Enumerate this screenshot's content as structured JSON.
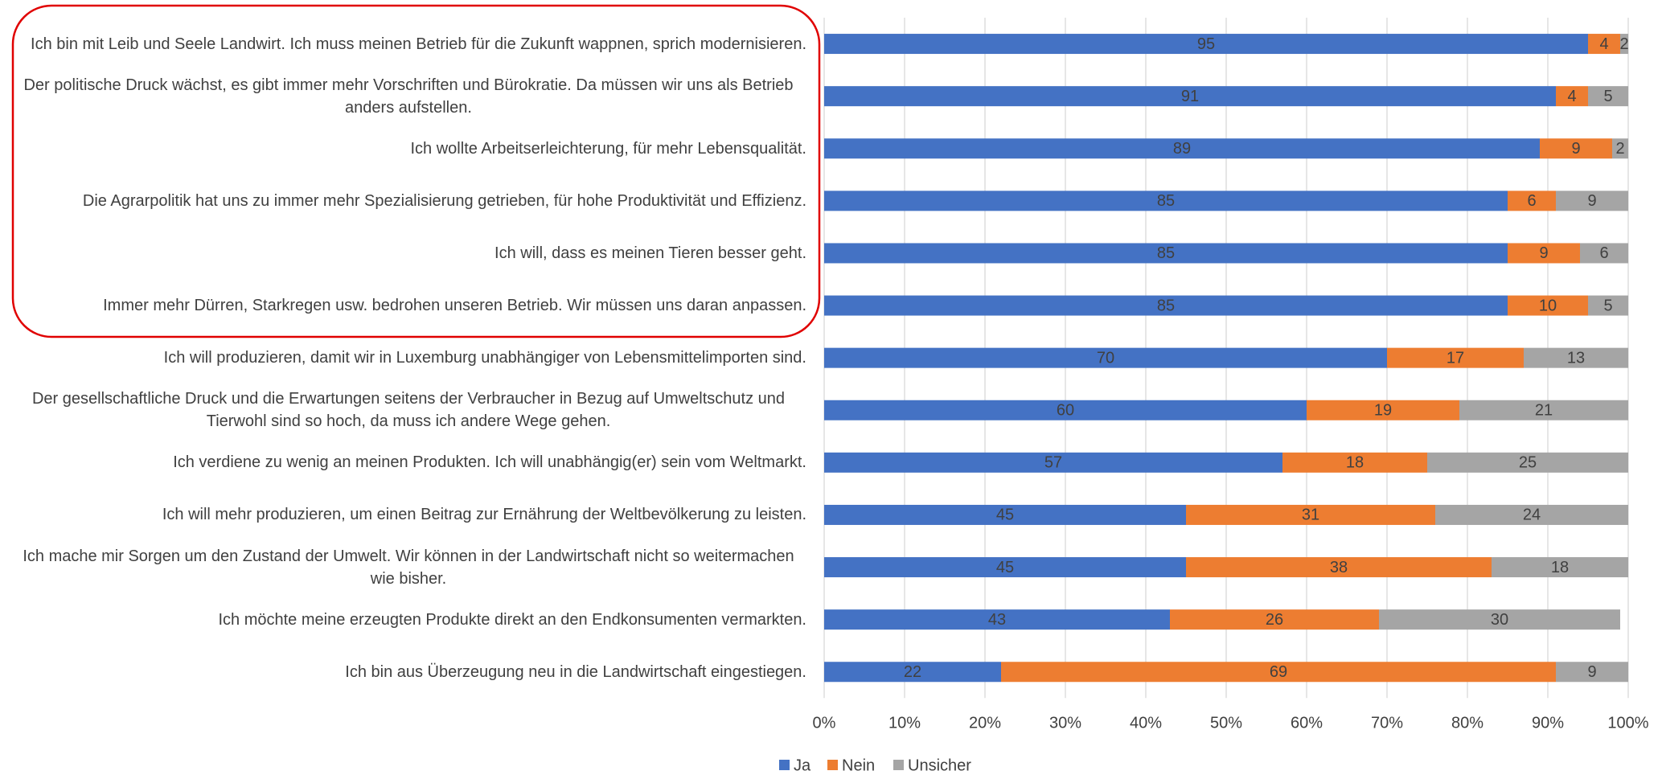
{
  "chart_data": {
    "type": "bar",
    "orientation": "horizontal",
    "stacked": true,
    "categories": [
      "Ich bin mit Leib und Seele Landwirt. Ich muss meinen Betrieb für die Zukunft wappnen, sprich modernisieren.",
      "Der politische Druck wächst, es gibt immer mehr Vorschriften und Bürokratie. Da müssen wir uns als Betrieb anders aufstellen.",
      "Ich wollte  Arbeitserleichterung, für mehr Lebensqualität.",
      "Die Agrarpolitik hat uns zu immer mehr Spezialisierung getrieben, für hohe Produktivität und Effizienz.",
      "Ich will, dass es meinen Tieren besser geht.",
      "Immer mehr Dürren, Starkregen usw.  bedrohen unseren Betrieb. Wir müssen uns daran anpassen.",
      "Ich will produzieren, damit wir in Luxemburg unabhängiger von Lebensmittelimporten sind.",
      "Der gesellschaftliche Druck und die Erwartungen seitens der Verbraucher in Bezug auf Umweltschutz und Tierwohl sind so hoch, da muss ich andere Wege gehen.",
      "Ich verdiene zu wenig an meinen Produkten. Ich will unabhängig(er) sein vom Weltmarkt.",
      "Ich will mehr produzieren, um einen Beitrag zur Ernährung der Weltbevölkerung zu leisten.",
      "Ich mache mir Sorgen um den Zustand der Umwelt. Wir können in der Landwirtschaft nicht so weitermachen wie bisher.",
      "Ich möchte meine erzeugten Produkte direkt an den Endkonsumenten vermarkten.",
      "Ich bin aus Überzeugung neu in die Landwirtschaft eingestiegen."
    ],
    "series": [
      {
        "name": "Ja",
        "color": "#4472c4",
        "values": [
          95,
          91,
          89,
          85,
          85,
          85,
          70,
          60,
          57,
          45,
          45,
          43,
          22
        ]
      },
      {
        "name": "Nein",
        "color": "#ed7d31",
        "values": [
          4,
          4,
          9,
          6,
          9,
          10,
          17,
          19,
          18,
          31,
          38,
          26,
          69
        ]
      },
      {
        "name": "Unsicher",
        "color": "#a5a5a5",
        "values": [
          2,
          5,
          2,
          9,
          6,
          5,
          13,
          21,
          25,
          24,
          18,
          30,
          9
        ]
      }
    ],
    "xlim": [
      0,
      100
    ],
    "xticks": [
      {
        "value": 0,
        "label": "0%"
      },
      {
        "value": 10,
        "label": "10%"
      },
      {
        "value": 20,
        "label": "20%"
      },
      {
        "value": 30,
        "label": "30%"
      },
      {
        "value": 40,
        "label": "40%"
      },
      {
        "value": 50,
        "label": "50%"
      },
      {
        "value": 60,
        "label": "60%"
      },
      {
        "value": 70,
        "label": "70%"
      },
      {
        "value": 80,
        "label": "80%"
      },
      {
        "value": 90,
        "label": "90%"
      },
      {
        "value": 100,
        "label": "100%"
      }
    ],
    "grid": true,
    "legend": "bottom"
  }
}
